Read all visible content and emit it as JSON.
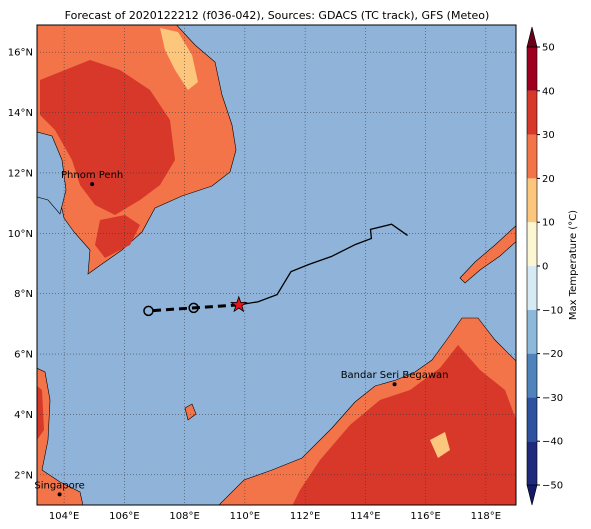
{
  "title": "Forecast of 2020122212 (f036-042), Sources: GDACS (TC track), GFS (Meteo)",
  "map": {
    "xlim": [
      103.1,
      119.0
    ],
    "ylim": [
      1.0,
      16.9
    ],
    "lon_ticks": [
      {
        "value": 104,
        "label": "104°E"
      },
      {
        "value": 106,
        "label": "106°E"
      },
      {
        "value": 108,
        "label": "108°E"
      },
      {
        "value": 110,
        "label": "110°E"
      },
      {
        "value": 112,
        "label": "112°E"
      },
      {
        "value": 114,
        "label": "114°E"
      },
      {
        "value": 116,
        "label": "116°E"
      },
      {
        "value": 118,
        "label": "118°E"
      }
    ],
    "lat_ticks": [
      {
        "value": 2,
        "label": "2°N"
      },
      {
        "value": 4,
        "label": "4°N"
      },
      {
        "value": 6,
        "label": "6°N"
      },
      {
        "value": 8,
        "label": "8°N"
      },
      {
        "value": 10,
        "label": "10°N"
      },
      {
        "value": 12,
        "label": "12°N"
      },
      {
        "value": 14,
        "label": "14°N"
      },
      {
        "value": 16,
        "label": "16°N"
      }
    ],
    "sea_color": "#8fb3d9"
  },
  "cities": [
    {
      "name": "Phnom Penh",
      "lon": 104.93,
      "lat": 11.63
    },
    {
      "name": "Bandar Seri Begawan",
      "lon": 114.97,
      "lat": 5.0
    },
    {
      "name": "Singapore",
      "lon": 103.85,
      "lat": 1.35
    }
  ],
  "track": {
    "past": {
      "lon": [
        115.4,
        114.87,
        114.17,
        114.2,
        113.67,
        112.87,
        112.13,
        111.53,
        111.07,
        110.43,
        109.8
      ],
      "lat": [
        9.93,
        10.3,
        10.13,
        9.83,
        9.63,
        9.23,
        8.97,
        8.73,
        7.97,
        7.73,
        7.63
      ]
    },
    "forecast": {
      "lon": [
        109.8,
        108.3,
        106.8
      ],
      "lat": [
        7.63,
        7.53,
        7.43
      ]
    },
    "current": {
      "lon": 109.8,
      "lat": 7.63
    }
  },
  "colorbar": {
    "label": "Max Temperature (°C)",
    "lim": [
      -50,
      50
    ],
    "ticks": [
      {
        "value": -50,
        "label": "−50"
      },
      {
        "value": -40,
        "label": "−40"
      },
      {
        "value": -30,
        "label": "−30"
      },
      {
        "value": -20,
        "label": "−20"
      },
      {
        "value": -10,
        "label": "−10"
      },
      0,
      10,
      20,
      30,
      40,
      50
    ],
    "colors": [
      "#202a7c",
      "#2f52a0",
      "#4f83bc",
      "#8db8d9",
      "#d5eaf3",
      "#fdf6d2",
      "#fdc67d",
      "#f4744a",
      "#d7382a",
      "#a0001f"
    ],
    "under_color": "#141a6a",
    "over_color": "#6b0019"
  }
}
